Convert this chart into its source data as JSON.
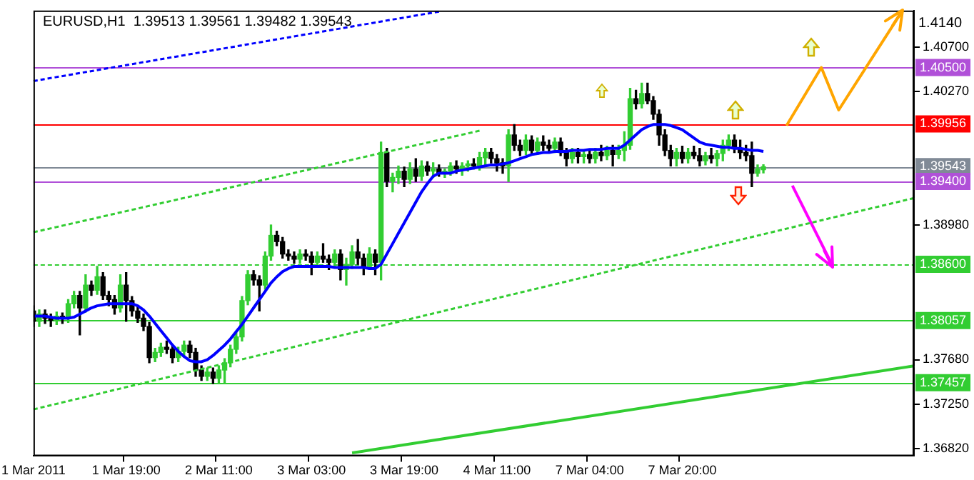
{
  "chart_data": {
    "type": "candlestick",
    "title": "EURUSD,H1  1.39513 1.39561 1.39482 1.39543",
    "categories": [
      "1 Mar 2011",
      null,
      null,
      null,
      null,
      null,
      null,
      null,
      null,
      null,
      null,
      null,
      null,
      null,
      null,
      null,
      "1 Mar 19:00",
      null,
      null,
      null,
      null,
      null,
      null,
      null,
      null,
      null,
      null,
      null,
      null,
      null,
      null,
      null,
      "2 Mar 11:00",
      null,
      null,
      null,
      null,
      null,
      null,
      null,
      null,
      null,
      null,
      null,
      null,
      null,
      null,
      null,
      "3 Mar 03:00",
      null,
      null,
      null,
      null,
      null,
      null,
      null,
      null,
      null,
      null,
      null,
      null,
      null,
      null,
      null,
      "3 Mar 19:00",
      null,
      null,
      null,
      null,
      null,
      null,
      null,
      null,
      null,
      null,
      null,
      null,
      null,
      null,
      null,
      "4 Mar 11:00",
      null,
      null,
      null,
      null,
      null,
      null,
      null,
      null,
      null,
      null,
      null,
      null,
      null,
      null,
      null,
      "7 Mar 04:00",
      null,
      null,
      null,
      null,
      null,
      null,
      null,
      null,
      null,
      null,
      null,
      null,
      null,
      null,
      null,
      "7 Mar 20:00",
      null,
      null,
      null,
      null,
      null,
      null,
      null,
      null,
      null,
      null,
      null,
      null,
      null,
      null,
      null,
      null,
      null,
      null,
      null,
      null,
      null,
      null,
      null,
      null,
      null,
      null,
      null,
      null,
      null,
      null,
      null,
      null,
      null,
      null,
      null,
      null,
      null,
      null,
      null,
      null
    ],
    "ohlc": [
      [
        1.3815,
        1.382,
        1.38,
        1.3805
      ],
      [
        1.3805,
        1.3816,
        1.38,
        1.3812
      ],
      [
        1.3812,
        1.3816,
        1.3803,
        1.3808
      ],
      [
        1.3808,
        1.3812,
        1.38,
        1.3806
      ],
      [
        1.3806,
        1.3814,
        1.3802,
        1.381
      ],
      [
        1.381,
        1.3813,
        1.3803,
        1.3808
      ],
      [
        1.3808,
        1.3826,
        1.3804,
        1.3822
      ],
      [
        1.3822,
        1.3834,
        1.3818,
        1.383
      ],
      [
        1.383,
        1.3834,
        1.3792,
        1.3818
      ],
      [
        1.3818,
        1.385,
        1.3814,
        1.384
      ],
      [
        1.384,
        1.3844,
        1.383,
        1.3835
      ],
      [
        1.3835,
        1.3858,
        1.3831,
        1.3848
      ],
      [
        1.3848,
        1.3852,
        1.3826,
        1.383
      ],
      [
        1.383,
        1.3834,
        1.382,
        1.3826
      ],
      [
        1.3826,
        1.383,
        1.3812,
        1.3818
      ],
      [
        1.3818,
        1.385,
        1.3814,
        1.384
      ],
      [
        1.384,
        1.3852,
        1.3805,
        1.3825
      ],
      [
        1.3825,
        1.3829,
        1.381,
        1.3815
      ],
      [
        1.3815,
        1.3819,
        1.3804,
        1.3808
      ],
      [
        1.3808,
        1.3812,
        1.3796,
        1.38
      ],
      [
        1.38,
        1.3804,
        1.3765,
        1.377
      ],
      [
        1.377,
        1.3779,
        1.3766,
        1.3775
      ],
      [
        1.3775,
        1.3784,
        1.3771,
        1.378
      ],
      [
        1.378,
        1.3786,
        1.3774,
        1.3778
      ],
      [
        1.3778,
        1.3782,
        1.3765,
        1.377
      ],
      [
        1.377,
        1.378,
        1.3766,
        1.3776
      ],
      [
        1.3776,
        1.3786,
        1.3772,
        1.3782
      ],
      [
        1.3782,
        1.3786,
        1.377,
        1.3775
      ],
      [
        1.3775,
        1.3779,
        1.3752,
        1.3758
      ],
      [
        1.3758,
        1.3762,
        1.3748,
        1.3752
      ],
      [
        1.3752,
        1.376,
        1.3748,
        1.3756
      ],
      [
        1.3756,
        1.376,
        1.3745,
        1.375
      ],
      [
        1.375,
        1.3762,
        1.3746,
        1.3758
      ],
      [
        1.3758,
        1.3769,
        1.3745,
        1.3765
      ],
      [
        1.3765,
        1.3782,
        1.3761,
        1.3778
      ],
      [
        1.3778,
        1.3794,
        1.3774,
        1.379
      ],
      [
        1.379,
        1.3829,
        1.3786,
        1.3825
      ],
      [
        1.3825,
        1.3854,
        1.3821,
        1.385
      ],
      [
        1.385,
        1.3854,
        1.384,
        1.3845
      ],
      [
        1.3845,
        1.3849,
        1.3815,
        1.384
      ],
      [
        1.384,
        1.3872,
        1.3836,
        1.3868
      ],
      [
        1.3868,
        1.3898,
        1.3864,
        1.3888
      ],
      [
        1.3888,
        1.3892,
        1.3878,
        1.3882
      ],
      [
        1.3882,
        1.3886,
        1.3866,
        1.387
      ],
      [
        1.387,
        1.3874,
        1.3864,
        1.3868
      ],
      [
        1.3868,
        1.3872,
        1.3861,
        1.3865
      ],
      [
        1.3865,
        1.3874,
        1.3861,
        1.387
      ],
      [
        1.387,
        1.3874,
        1.3864,
        1.3868
      ],
      [
        1.3868,
        1.3872,
        1.385,
        1.3862
      ],
      [
        1.3862,
        1.3872,
        1.3858,
        1.3868
      ],
      [
        1.3868,
        1.388,
        1.3862,
        1.3865
      ],
      [
        1.3865,
        1.3869,
        1.3855,
        1.3862
      ],
      [
        1.3862,
        1.3874,
        1.3858,
        1.387
      ],
      [
        1.387,
        1.3874,
        1.3845,
        1.3855
      ],
      [
        1.3855,
        1.3866,
        1.384,
        1.386
      ],
      [
        1.386,
        1.3878,
        1.3856,
        1.3872
      ],
      [
        1.3872,
        1.3884,
        1.386,
        1.3866
      ],
      [
        1.3866,
        1.387,
        1.385,
        1.3858
      ],
      [
        1.3858,
        1.3876,
        1.3855,
        1.387
      ],
      [
        1.387,
        1.3874,
        1.385,
        1.3862
      ],
      [
        1.3862,
        1.3978,
        1.3845,
        1.3968
      ],
      [
        1.3968,
        1.3972,
        1.3935,
        1.394
      ],
      [
        1.394,
        1.3948,
        1.393,
        1.3944
      ],
      [
        1.3944,
        1.3955,
        1.3938,
        1.395
      ],
      [
        1.395,
        1.3954,
        1.3935,
        1.3942
      ],
      [
        1.3942,
        1.3958,
        1.3938,
        1.3952
      ],
      [
        1.3952,
        1.3962,
        1.394,
        1.3945
      ],
      [
        1.3945,
        1.396,
        1.3941,
        1.3955
      ],
      [
        1.3955,
        1.3959,
        1.3946,
        1.395
      ],
      [
        1.395,
        1.3958,
        1.3944,
        1.3952
      ],
      [
        1.3952,
        1.3956,
        1.3945,
        1.3948
      ],
      [
        1.3948,
        1.3952,
        1.3944,
        1.395
      ],
      [
        1.395,
        1.3958,
        1.3946,
        1.3955
      ],
      [
        1.3955,
        1.396,
        1.3948,
        1.3952
      ],
      [
        1.3952,
        1.3958,
        1.3946,
        1.3955
      ],
      [
        1.3955,
        1.396,
        1.395,
        1.3957
      ],
      [
        1.3957,
        1.3962,
        1.3952,
        1.3955
      ],
      [
        1.3955,
        1.3968,
        1.3951,
        1.3963
      ],
      [
        1.3963,
        1.3972,
        1.3955,
        1.3968
      ],
      [
        1.3968,
        1.3972,
        1.3958,
        1.3962
      ],
      [
        1.3962,
        1.3966,
        1.395,
        1.3958
      ],
      [
        1.3958,
        1.3962,
        1.3948,
        1.3955
      ],
      [
        1.3955,
        1.399,
        1.394,
        1.3985
      ],
      [
        1.3985,
        1.3995,
        1.397,
        1.3975
      ],
      [
        1.3975,
        1.398,
        1.3965,
        1.397
      ],
      [
        1.397,
        1.3985,
        1.3966,
        1.398
      ],
      [
        1.398,
        1.3984,
        1.3966,
        1.397
      ],
      [
        1.397,
        1.3982,
        1.3966,
        1.3978
      ],
      [
        1.3978,
        1.3984,
        1.397,
        1.3975
      ],
      [
        1.3975,
        1.398,
        1.3968,
        1.3972
      ],
      [
        1.3972,
        1.3982,
        1.3968,
        1.3978
      ],
      [
        1.3978,
        1.3982,
        1.3965,
        1.3968
      ],
      [
        1.3968,
        1.3972,
        1.3955,
        1.3962
      ],
      [
        1.3962,
        1.3972,
        1.3958,
        1.3968
      ],
      [
        1.3968,
        1.3972,
        1.3958,
        1.3964
      ],
      [
        1.3964,
        1.397,
        1.3958,
        1.3966
      ],
      [
        1.3966,
        1.397,
        1.3958,
        1.3962
      ],
      [
        1.3962,
        1.3972,
        1.3958,
        1.3968
      ],
      [
        1.3968,
        1.3975,
        1.396,
        1.3965
      ],
      [
        1.3965,
        1.3974,
        1.3961,
        1.397
      ],
      [
        1.397,
        1.3975,
        1.3955,
        1.3966
      ],
      [
        1.3966,
        1.3975,
        1.3962,
        1.397
      ],
      [
        1.397,
        1.3988,
        1.396,
        1.3975
      ],
      [
        1.3975,
        1.403,
        1.3971,
        1.402
      ],
      [
        1.402,
        1.4028,
        1.401,
        1.4015
      ],
      [
        1.4015,
        1.4035,
        1.4011,
        1.4025
      ],
      [
        1.4025,
        1.4035,
        1.4015,
        1.4018
      ],
      [
        1.4018,
        1.4022,
        1.4,
        1.4005
      ],
      [
        1.4005,
        1.4009,
        1.3975,
        1.3985
      ],
      [
        1.3985,
        1.399,
        1.3965,
        1.397
      ],
      [
        1.397,
        1.3975,
        1.3955,
        1.3962
      ],
      [
        1.3962,
        1.3972,
        1.3955,
        1.3968
      ],
      [
        1.3968,
        1.3974,
        1.3958,
        1.3962
      ],
      [
        1.3962,
        1.3972,
        1.3958,
        1.3968
      ],
      [
        1.3968,
        1.3974,
        1.3962,
        1.3965
      ],
      [
        1.3965,
        1.3972,
        1.3955,
        1.396
      ],
      [
        1.396,
        1.3968,
        1.3956,
        1.3965
      ],
      [
        1.3965,
        1.3972,
        1.3958,
        1.3962
      ],
      [
        1.3962,
        1.397,
        1.3955,
        1.3967
      ],
      [
        1.3967,
        1.398,
        1.396,
        1.3975
      ],
      [
        1.3975,
        1.3985,
        1.397,
        1.398
      ],
      [
        1.398,
        1.3985,
        1.3968,
        1.3972
      ],
      [
        1.3972,
        1.398,
        1.3962,
        1.3968
      ],
      [
        1.3968,
        1.3975,
        1.396,
        1.3965
      ],
      [
        1.3965,
        1.3978,
        1.3935,
        1.3948
      ],
      [
        1.3948,
        1.3956,
        1.3945,
        1.3952
      ],
      [
        1.39513,
        1.39561,
        1.39482,
        1.39543
      ],
      null,
      null,
      null,
      null,
      null,
      null,
      null,
      null,
      null,
      null,
      null,
      null,
      null,
      null,
      null,
      null,
      null,
      null,
      null,
      null,
      null,
      null,
      null,
      null,
      null,
      null
    ],
    "series": [
      {
        "type": "line",
        "color": "#0000ff",
        "values": [
          1.381,
          1.381,
          1.381,
          1.3809,
          1.3808,
          1.3808,
          1.3808,
          1.3809,
          1.3812,
          1.3815,
          1.3818,
          1.382,
          1.3821,
          1.3822,
          1.3822,
          1.3822,
          1.3822,
          1.3822,
          1.382,
          1.3816,
          1.381,
          1.3803,
          1.3796,
          1.3789,
          1.3782,
          1.3776,
          1.3771,
          1.3767,
          1.3766,
          1.3766,
          1.3768,
          1.3772,
          1.3777,
          1.3782,
          1.3788,
          1.3795,
          1.3802,
          1.381,
          1.3818,
          1.3826,
          1.3834,
          1.3842,
          1.3848,
          1.3853,
          1.3856,
          1.3858,
          1.3858,
          1.3858,
          1.3858,
          1.3858,
          1.3858,
          1.3858,
          1.3857,
          1.3857,
          1.3857,
          1.3857,
          1.3857,
          1.3857,
          1.3856,
          1.3856,
          1.386,
          1.387,
          1.388,
          1.389,
          1.39,
          1.391,
          1.392,
          1.393,
          1.3938,
          1.3945,
          1.3948,
          1.3948,
          1.3948,
          1.395,
          1.3951,
          1.3952,
          1.3953,
          1.3954,
          1.3955,
          1.3956,
          1.3956,
          1.3957,
          1.3958,
          1.396,
          1.3962,
          1.3964,
          1.3966,
          1.3967,
          1.3968,
          1.3968,
          1.3969,
          1.3969,
          1.3969,
          1.397,
          1.397,
          1.397,
          1.3971,
          1.3971,
          1.3971,
          1.3972,
          1.3972,
          1.3972,
          1.3975,
          1.398,
          1.3985,
          1.399,
          1.3993,
          1.3995,
          1.3995,
          1.3995,
          1.3994,
          1.3992,
          1.399,
          1.3986,
          1.3982,
          1.3978,
          1.3976,
          1.3975,
          1.3974,
          1.3973,
          1.3973,
          1.3972,
          1.3972,
          1.3971,
          1.397,
          1.397,
          1.3969,
          null,
          null,
          null,
          null,
          null,
          null,
          null,
          null,
          null,
          null,
          null,
          null,
          null,
          null,
          null,
          null,
          null,
          null,
          null,
          null,
          null,
          null,
          null,
          null,
          null,
          null
        ]
      },
      {
        "type": "line",
        "color": "#0000ff",
        "line_style": "dashed",
        "values": [
          1.4037,
          null,
          null,
          null,
          null,
          null,
          null,
          null,
          null,
          null,
          null,
          null,
          null,
          null,
          null,
          null,
          null,
          null,
          null,
          null,
          null,
          null,
          null,
          null,
          null,
          null,
          null,
          null,
          null,
          null,
          null,
          null,
          null,
          null,
          null,
          null,
          null,
          null,
          null,
          null,
          null,
          null,
          null,
          null,
          null,
          null,
          null,
          null,
          null,
          null,
          null,
          null,
          null,
          null,
          null,
          null,
          null,
          null,
          null,
          null,
          null,
          null,
          null,
          null,
          null,
          null,
          null,
          null,
          null,
          null,
          1.4104,
          null,
          null,
          null,
          null,
          null,
          null,
          null,
          null,
          null,
          null,
          null,
          null,
          null,
          null,
          null,
          null,
          null,
          null,
          null,
          null,
          null,
          null,
          null,
          null,
          null,
          null,
          null,
          null,
          null,
          null,
          null,
          null,
          null,
          null,
          null,
          null,
          null,
          null,
          null,
          null,
          null,
          null,
          null,
          null,
          null,
          null,
          null,
          null,
          null,
          null,
          null,
          null,
          null,
          null,
          null,
          null,
          null,
          null,
          null,
          null,
          null,
          null,
          null,
          null,
          null,
          null,
          null,
          null,
          null,
          null,
          null,
          null,
          null,
          null,
          null,
          null,
          null,
          null,
          null,
          null,
          null,
          null
        ]
      },
      {
        "type": "line",
        "color": "#32cd32",
        "line_style": "dashed",
        "values": [
          1.3891,
          null,
          null,
          null,
          null,
          null,
          null,
          null,
          null,
          null,
          null,
          null,
          null,
          null,
          null,
          null,
          null,
          null,
          null,
          null,
          null,
          null,
          null,
          null,
          null,
          null,
          null,
          null,
          null,
          null,
          null,
          null,
          null,
          null,
          null,
          null,
          null,
          null,
          null,
          null,
          null,
          null,
          null,
          null,
          null,
          null,
          null,
          null,
          null,
          null,
          null,
          null,
          null,
          null,
          null,
          null,
          null,
          null,
          null,
          null,
          null,
          null,
          null,
          null,
          null,
          null,
          null,
          null,
          null,
          null,
          null,
          null,
          null,
          null,
          null,
          null,
          null,
          1.3989,
          null,
          null,
          null,
          null,
          null,
          null,
          null,
          null,
          null,
          null,
          null,
          null,
          null,
          null,
          null,
          null,
          null,
          null,
          null,
          null,
          null,
          null,
          null,
          null,
          null,
          null,
          null,
          null,
          null,
          null,
          null,
          null,
          null,
          null,
          null,
          null,
          null,
          null,
          null,
          null,
          null,
          null,
          null,
          null,
          null,
          null,
          null,
          null,
          null,
          null,
          null,
          null,
          null,
          null,
          null,
          null,
          null,
          null,
          null,
          null,
          null,
          null,
          null,
          null,
          null,
          null,
          null,
          null,
          null,
          null,
          null,
          null,
          null,
          null,
          null
        ]
      },
      {
        "type": "line",
        "color": "#32cd32",
        "line_style": "dashed",
        "values": [
          1.372,
          null,
          null,
          null,
          null,
          null,
          null,
          null,
          null,
          null,
          null,
          null,
          null,
          null,
          null,
          null,
          null,
          null,
          null,
          null,
          null,
          null,
          null,
          null,
          null,
          null,
          null,
          null,
          null,
          null,
          null,
          null,
          null,
          null,
          null,
          null,
          null,
          null,
          null,
          null,
          null,
          null,
          null,
          null,
          null,
          null,
          null,
          null,
          null,
          null,
          null,
          null,
          null,
          null,
          null,
          null,
          null,
          null,
          null,
          null,
          null,
          null,
          null,
          null,
          null,
          null,
          null,
          null,
          null,
          null,
          null,
          null,
          null,
          null,
          null,
          null,
          null,
          null,
          null,
          null,
          null,
          null,
          null,
          null,
          null,
          null,
          null,
          null,
          null,
          null,
          null,
          null,
          null,
          null,
          null,
          null,
          null,
          null,
          null,
          null,
          null,
          null,
          null,
          null,
          null,
          null,
          null,
          null,
          null,
          null,
          null,
          null,
          null,
          null,
          null,
          null,
          null,
          null,
          null,
          null,
          null,
          null,
          null,
          null,
          null,
          null,
          null,
          null,
          null,
          null,
          null,
          null,
          null,
          null,
          null,
          null,
          null,
          null,
          null,
          null,
          null,
          null,
          null,
          null,
          null,
          null,
          null,
          null,
          null,
          null,
          null,
          null,
          1.3924
        ]
      },
      {
        "type": "line",
        "color": "#32cd32",
        "values": [
          null,
          null,
          null,
          null,
          null,
          null,
          null,
          null,
          null,
          null,
          null,
          null,
          null,
          null,
          null,
          null,
          null,
          null,
          null,
          null,
          null,
          null,
          null,
          null,
          null,
          null,
          null,
          null,
          null,
          null,
          null,
          null,
          null,
          null,
          null,
          null,
          null,
          null,
          null,
          null,
          null,
          null,
          null,
          null,
          null,
          null,
          null,
          null,
          null,
          null,
          null,
          null,
          null,
          null,
          null,
          1.3678,
          null,
          null,
          null,
          null,
          null,
          null,
          null,
          null,
          null,
          null,
          null,
          null,
          null,
          null,
          null,
          null,
          null,
          null,
          null,
          null,
          null,
          null,
          null,
          null,
          null,
          null,
          null,
          null,
          null,
          null,
          null,
          null,
          null,
          null,
          null,
          null,
          null,
          null,
          null,
          null,
          null,
          null,
          null,
          null,
          null,
          null,
          null,
          null,
          null,
          null,
          null,
          null,
          null,
          null,
          null,
          null,
          null,
          null,
          null,
          null,
          null,
          null,
          null,
          null,
          null,
          null,
          null,
          null,
          null,
          null,
          null,
          null,
          null,
          null,
          null,
          null,
          null,
          null,
          null,
          null,
          null,
          null,
          null,
          null,
          null,
          null,
          null,
          null,
          null,
          null,
          null,
          null,
          null,
          null,
          null,
          null,
          1.3762
        ]
      },
      {
        "type": "line",
        "color": "#ffa500",
        "values": [
          null,
          null,
          null,
          null,
          null,
          null,
          null,
          null,
          null,
          null,
          null,
          null,
          null,
          null,
          null,
          null,
          null,
          null,
          null,
          null,
          null,
          null,
          null,
          null,
          null,
          null,
          null,
          null,
          null,
          null,
          null,
          null,
          null,
          null,
          null,
          null,
          null,
          null,
          null,
          null,
          null,
          null,
          null,
          null,
          null,
          null,
          null,
          null,
          null,
          null,
          null,
          null,
          null,
          null,
          null,
          null,
          null,
          null,
          null,
          null,
          null,
          null,
          null,
          null,
          null,
          null,
          null,
          null,
          null,
          null,
          null,
          null,
          null,
          null,
          null,
          null,
          null,
          null,
          null,
          null,
          null,
          null,
          null,
          null,
          null,
          null,
          null,
          null,
          null,
          null,
          null,
          null,
          null,
          null,
          null,
          null,
          null,
          null,
          null,
          null,
          null,
          null,
          null,
          null,
          null,
          null,
          null,
          null,
          null,
          null,
          null,
          null,
          null,
          null,
          null,
          null,
          null,
          null,
          null,
          null,
          null,
          null,
          null,
          null,
          null,
          null,
          null,
          null,
          null,
          null,
          1.3994,
          null,
          null,
          null,
          null,
          null,
          1.405,
          null,
          null,
          1.4009,
          null,
          null,
          null,
          null,
          null,
          null,
          null,
          null,
          null,
          null,
          1.4105,
          null,
          null
        ]
      },
      {
        "type": "line",
        "color": "#ff00ff",
        "values": [
          null,
          null,
          null,
          null,
          null,
          null,
          null,
          null,
          null,
          null,
          null,
          null,
          null,
          null,
          null,
          null,
          null,
          null,
          null,
          null,
          null,
          null,
          null,
          null,
          null,
          null,
          null,
          null,
          null,
          null,
          null,
          null,
          null,
          null,
          null,
          null,
          null,
          null,
          null,
          null,
          null,
          null,
          null,
          null,
          null,
          null,
          null,
          null,
          null,
          null,
          null,
          null,
          null,
          null,
          null,
          null,
          null,
          null,
          null,
          null,
          null,
          null,
          null,
          null,
          null,
          null,
          null,
          null,
          null,
          null,
          null,
          null,
          null,
          null,
          null,
          null,
          null,
          null,
          null,
          null,
          null,
          null,
          null,
          null,
          null,
          null,
          null,
          null,
          null,
          null,
          null,
          null,
          null,
          null,
          null,
          null,
          null,
          null,
          null,
          null,
          null,
          null,
          null,
          null,
          null,
          null,
          null,
          null,
          null,
          null,
          null,
          null,
          null,
          null,
          null,
          null,
          null,
          null,
          null,
          null,
          null,
          null,
          null,
          null,
          null,
          null,
          null,
          null,
          null,
          null,
          null,
          1.3936,
          null,
          null,
          null,
          null,
          null,
          null,
          1.3858,
          null,
          null,
          null,
          null,
          null,
          null,
          null,
          null,
          null,
          null,
          null,
          null,
          null,
          null
        ]
      }
    ],
    "ylim": [
      1.3675,
      1.4105
    ],
    "yticks": [
      {
        "value": 1.407,
        "label": "1.40700"
      },
      {
        "value": 1.4027,
        "label": "1.40270"
      },
      {
        "value": 1.3898,
        "label": "1.38980"
      },
      {
        "value": 1.3768,
        "label": "1.37680"
      },
      {
        "value": 1.3725,
        "label": "1.37250"
      },
      {
        "value": 1.3682,
        "label": "1.36820"
      }
    ],
    "ref_lines": [
      {
        "axis": "y",
        "value": 1.405,
        "label": "1.40500",
        "color": "#b050d8"
      },
      {
        "axis": "y",
        "value": 1.39956,
        "label": "1.39956",
        "color": "#ff0000"
      },
      {
        "axis": "y",
        "value": 1.39543,
        "label": "1.39543",
        "color": "#808a96"
      },
      {
        "axis": "y",
        "value": 1.394,
        "label": "1.39400",
        "color": "#b050d8"
      },
      {
        "axis": "y",
        "value": 1.386,
        "label": "1.38600",
        "color": "#32cd32",
        "line_style": "dashed"
      },
      {
        "axis": "y",
        "value": 1.38057,
        "label": "1.38057",
        "color": "#32cd32"
      },
      {
        "axis": "y",
        "value": 1.37457,
        "label": "1.37457",
        "color": "#32cd32"
      }
    ],
    "annotations": [
      "1.4140"
    ],
    "grid": false,
    "legend": false
  }
}
